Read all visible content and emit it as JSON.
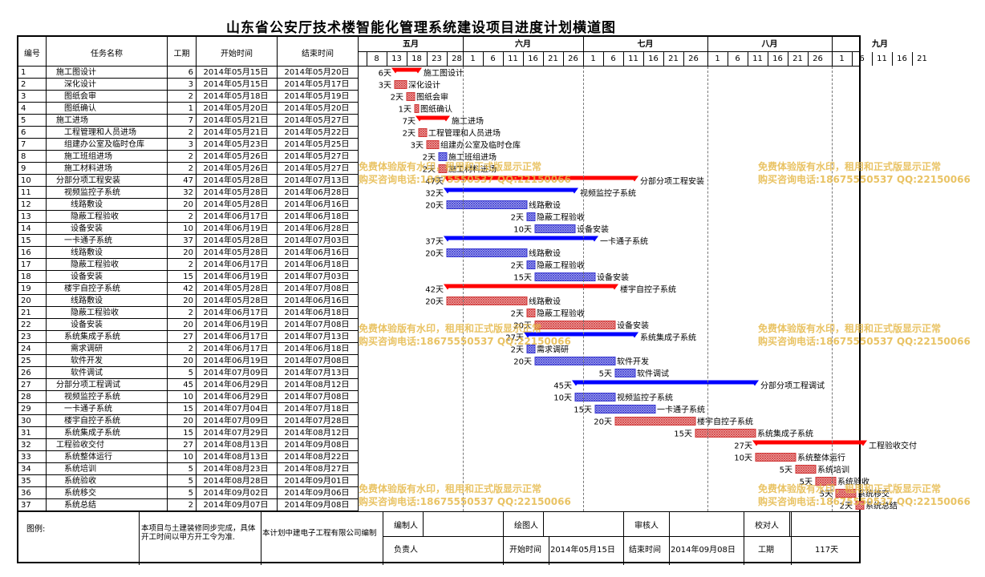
{
  "title": "山东省公安厅技术楼智能化管理系统建设项目进度计划横道图",
  "headers": {
    "no": "编号",
    "name": "任务名称",
    "dur": "工期",
    "start": "开始时间",
    "end": "结束时间"
  },
  "months": [
    {
      "label": "五月",
      "days": [
        "8",
        "13",
        "18",
        "23",
        "28"
      ]
    },
    {
      "label": "六月",
      "days": [
        "1",
        "6",
        "11",
        "16",
        "21",
        "26"
      ]
    },
    {
      "label": "七月",
      "days": [
        "1",
        "6",
        "11",
        "16",
        "21",
        "26"
      ]
    },
    {
      "label": "八月",
      "days": [
        "1",
        "6",
        "11",
        "16",
        "21",
        "26"
      ]
    },
    {
      "label": "九月",
      "days": [
        "1",
        "6",
        "11",
        "16",
        "21"
      ]
    }
  ],
  "chart_data": {
    "type": "gantt",
    "x_range": [
      "2014-05-06",
      "2014-09-25"
    ],
    "colors": {
      "summary_red": "#ff0000",
      "summary_blue": "#0000ff",
      "task_red": "#d23a3a",
      "task_blue": "#3a3ad2",
      "watermark": "#e6b94a"
    },
    "tasks": [
      {
        "no": "1",
        "name": "施工图设计",
        "dur": 6,
        "start": "2014年05月15日",
        "end": "2014年05月20日",
        "s": "2014-05-15",
        "e": "2014-05-20",
        "type": "summary",
        "color": "red",
        "label": "施工图设计",
        "level": 0
      },
      {
        "no": "2",
        "name": "深化设计",
        "dur": 3,
        "start": "2014年05月15日",
        "end": "2014年05月17日",
        "s": "2014-05-15",
        "e": "2014-05-17",
        "type": "task",
        "color": "red",
        "label": "深化设计",
        "level": 1
      },
      {
        "no": "3",
        "name": "图纸会审",
        "dur": 2,
        "start": "2014年05月18日",
        "end": "2014年05月19日",
        "s": "2014-05-18",
        "e": "2014-05-19",
        "type": "task",
        "color": "red",
        "label": "图纸会审",
        "level": 1
      },
      {
        "no": "4",
        "name": "图纸确认",
        "dur": 1,
        "start": "2014年05月20日",
        "end": "2014年05月20日",
        "s": "2014-05-20",
        "e": "2014-05-20",
        "type": "task",
        "color": "red",
        "label": "图纸确认",
        "level": 1
      },
      {
        "no": "5",
        "name": "施工进场",
        "dur": 7,
        "start": "2014年05月21日",
        "end": "2014年05月27日",
        "s": "2014-05-21",
        "e": "2014-05-27",
        "type": "summary",
        "color": "red",
        "label": "施工进场",
        "level": 0
      },
      {
        "no": "6",
        "name": "工程管理和人员进场",
        "dur": 2,
        "start": "2014年05月21日",
        "end": "2014年05月22日",
        "s": "2014-05-21",
        "e": "2014-05-22",
        "type": "task",
        "color": "red",
        "label": "工程管理和人员进场",
        "level": 1
      },
      {
        "no": "7",
        "name": "组建办公室及临时仓库",
        "dur": 3,
        "start": "2014年05月23日",
        "end": "2014年05月25日",
        "s": "2014-05-23",
        "e": "2014-05-25",
        "type": "task",
        "color": "red",
        "label": "组建办公室及临时仓库",
        "level": 1
      },
      {
        "no": "8",
        "name": "施工班组进场",
        "dur": 2,
        "start": "2014年05月26日",
        "end": "2014年05月27日",
        "s": "2014-05-26",
        "e": "2014-05-27",
        "type": "task",
        "color": "blue",
        "label": "施工班组进场",
        "level": 1
      },
      {
        "no": "9",
        "name": "施工材料进场",
        "dur": 2,
        "start": "2014年05月26日",
        "end": "2014年05月27日",
        "s": "2014-05-26",
        "e": "2014-05-27",
        "type": "task",
        "color": "red",
        "label": "施工材料进场",
        "level": 1
      },
      {
        "no": "10",
        "name": "分部分项工程安装",
        "dur": 47,
        "start": "2014年05月28日",
        "end": "2014年07月13日",
        "s": "2014-05-28",
        "e": "2014-07-13",
        "type": "summary",
        "color": "red",
        "label": "分部分项工程安装",
        "level": 0
      },
      {
        "no": "11",
        "name": "视频监控子系统",
        "dur": 32,
        "start": "2014年05月28日",
        "end": "2014年06月28日",
        "s": "2014-05-28",
        "e": "2014-06-28",
        "type": "summary",
        "color": "blue",
        "label": "视频监控子系统",
        "level": 1
      },
      {
        "no": "12",
        "name": "线路敷设",
        "dur": 20,
        "start": "2014年05月28日",
        "end": "2014年06月16日",
        "s": "2014-05-28",
        "e": "2014-06-16",
        "type": "task",
        "color": "blue",
        "label": "线路敷设",
        "level": 2
      },
      {
        "no": "13",
        "name": "隐蔽工程验收",
        "dur": 2,
        "start": "2014年06月17日",
        "end": "2014年06月18日",
        "s": "2014-06-17",
        "e": "2014-06-18",
        "type": "task",
        "color": "blue",
        "label": "隐蔽工程验收",
        "level": 2
      },
      {
        "no": "14",
        "name": "设备安装",
        "dur": 10,
        "start": "2014年06月19日",
        "end": "2014年06月28日",
        "s": "2014-06-19",
        "e": "2014-06-28",
        "type": "task",
        "color": "blue",
        "label": "设备安装",
        "level": 2
      },
      {
        "no": "15",
        "name": "一卡通子系统",
        "dur": 37,
        "start": "2014年05月28日",
        "end": "2014年07月03日",
        "s": "2014-05-28",
        "e": "2014-07-03",
        "type": "summary",
        "color": "blue",
        "label": "一卡通子系统",
        "level": 1
      },
      {
        "no": "16",
        "name": "线路敷设",
        "dur": 20,
        "start": "2014年05月28日",
        "end": "2014年06月16日",
        "s": "2014-05-28",
        "e": "2014-06-16",
        "type": "task",
        "color": "blue",
        "label": "线路敷设",
        "level": 2
      },
      {
        "no": "17",
        "name": "隐蔽工程验收",
        "dur": 2,
        "start": "2014年06月17日",
        "end": "2014年06月18日",
        "s": "2014-06-17",
        "e": "2014-06-18",
        "type": "task",
        "color": "blue",
        "label": "隐蔽工程验收",
        "level": 2
      },
      {
        "no": "18",
        "name": "设备安装",
        "dur": 15,
        "start": "2014年06月19日",
        "end": "2014年07月03日",
        "s": "2014-06-19",
        "e": "2014-07-03",
        "type": "task",
        "color": "blue",
        "label": "设备安装",
        "level": 2
      },
      {
        "no": "19",
        "name": "楼宇自控子系统",
        "dur": 42,
        "start": "2014年05月28日",
        "end": "2014年07月08日",
        "s": "2014-05-28",
        "e": "2014-07-08",
        "type": "summary",
        "color": "red",
        "label": "楼宇自控子系统",
        "level": 1
      },
      {
        "no": "20",
        "name": "线路敷设",
        "dur": 20,
        "start": "2014年05月28日",
        "end": "2014年06月16日",
        "s": "2014-05-28",
        "e": "2014-06-16",
        "type": "task",
        "color": "red",
        "label": "线路敷设",
        "level": 2
      },
      {
        "no": "21",
        "name": "隐蔽工程验收",
        "dur": 2,
        "start": "2014年06月17日",
        "end": "2014年06月18日",
        "s": "2014-06-17",
        "e": "2014-06-18",
        "type": "task",
        "color": "red",
        "label": "隐蔽工程验收",
        "level": 2
      },
      {
        "no": "22",
        "name": "设备安装",
        "dur": 20,
        "start": "2014年06月19日",
        "end": "2014年07月08日",
        "s": "2014-06-19",
        "e": "2014-07-08",
        "type": "task",
        "color": "red",
        "label": "设备安装",
        "level": 2
      },
      {
        "no": "23",
        "name": "系统集成子系统",
        "dur": 27,
        "start": "2014年06月17日",
        "end": "2014年07月13日",
        "s": "2014-06-17",
        "e": "2014-07-13",
        "type": "summary",
        "color": "blue",
        "label": "系统集成子系统",
        "level": 1
      },
      {
        "no": "24",
        "name": "需求调研",
        "dur": 2,
        "start": "2014年06月17日",
        "end": "2014年06月18日",
        "s": "2014-06-17",
        "e": "2014-06-18",
        "type": "task",
        "color": "blue",
        "label": "需求调研",
        "level": 2
      },
      {
        "no": "25",
        "name": "软件开发",
        "dur": 20,
        "start": "2014年06月19日",
        "end": "2014年07月08日",
        "s": "2014-06-19",
        "e": "2014-07-08",
        "type": "task",
        "color": "blue",
        "label": "软件开发",
        "level": 2
      },
      {
        "no": "26",
        "name": "软件调试",
        "dur": 5,
        "start": "2014年07月09日",
        "end": "2014年07月13日",
        "s": "2014-07-09",
        "e": "2014-07-13",
        "type": "task",
        "color": "blue",
        "label": "软件调试",
        "level": 2
      },
      {
        "no": "27",
        "name": "分部分项工程调试",
        "dur": 45,
        "start": "2014年06月29日",
        "end": "2014年08月12日",
        "s": "2014-06-29",
        "e": "2014-08-12",
        "type": "summary",
        "color": "blue",
        "label": "分部分项工程调试",
        "level": 0
      },
      {
        "no": "28",
        "name": "视频监控子系统",
        "dur": 10,
        "start": "2014年06月29日",
        "end": "2014年07月08日",
        "s": "2014-06-29",
        "e": "2014-07-08",
        "type": "task",
        "color": "blue",
        "label": "视频监控子系统",
        "level": 1
      },
      {
        "no": "29",
        "name": "一卡通子系统",
        "dur": 15,
        "start": "2014年07月04日",
        "end": "2014年07月18日",
        "s": "2014-07-04",
        "e": "2014-07-18",
        "type": "task",
        "color": "blue",
        "label": "一卡通子系统",
        "level": 1
      },
      {
        "no": "30",
        "name": "楼宇自控子系统",
        "dur": 20,
        "start": "2014年07月09日",
        "end": "2014年07月28日",
        "s": "2014-07-09",
        "e": "2014-07-28",
        "type": "task",
        "color": "red",
        "label": "楼宇自控子系统",
        "level": 1
      },
      {
        "no": "31",
        "name": "系统集成子系统",
        "dur": 15,
        "start": "2014年07月29日",
        "end": "2014年08月12日",
        "s": "2014-07-29",
        "e": "2014-08-12",
        "type": "task",
        "color": "red",
        "label": "系统集成子系统",
        "level": 1
      },
      {
        "no": "32",
        "name": "工程验收交付",
        "dur": 27,
        "start": "2014年08月13日",
        "end": "2014年09月08日",
        "s": "2014-08-13",
        "e": "2014-09-08",
        "type": "summary",
        "color": "red",
        "label": "工程验收交付",
        "level": 0
      },
      {
        "no": "33",
        "name": "系统整体运行",
        "dur": 10,
        "start": "2014年08月13日",
        "end": "2014年08月22日",
        "s": "2014-08-13",
        "e": "2014-08-22",
        "type": "task",
        "color": "red",
        "label": "系统整体运行",
        "level": 1
      },
      {
        "no": "34",
        "name": "系统培训",
        "dur": 5,
        "start": "2014年08月23日",
        "end": "2014年08月27日",
        "s": "2014-08-23",
        "e": "2014-08-27",
        "type": "task",
        "color": "red",
        "label": "系统培训",
        "level": 1
      },
      {
        "no": "35",
        "name": "系统验收",
        "dur": 5,
        "start": "2014年08月28日",
        "end": "2014年09月01日",
        "s": "2014-08-28",
        "e": "2014-09-01",
        "type": "task",
        "color": "red",
        "label": "系统验收",
        "level": 1
      },
      {
        "no": "36",
        "name": "系统移交",
        "dur": 5,
        "start": "2014年09月02日",
        "end": "2014年09月06日",
        "s": "2014-09-02",
        "e": "2014-09-06",
        "type": "task",
        "color": "red",
        "label": "系统移交",
        "level": 1
      },
      {
        "no": "37",
        "name": "系统总结",
        "dur": 2,
        "start": "2014年09月07日",
        "end": "2014年09月08日",
        "s": "2014-09-07",
        "e": "2014-09-08",
        "type": "task",
        "color": "red",
        "label": "系统总结",
        "level": 1
      }
    ]
  },
  "day_suffix": "天",
  "footer": {
    "legend_label": "图例:",
    "note": "本项目与土建装修同步完成，具体开工时间以甲方开工令为准.",
    "company": "本计划中建电子工程有限公司编制",
    "compiler_label": "编制人",
    "drafter_label": "绘图人",
    "reviewer_label": "审核人",
    "checker_label": "校对人",
    "owner_label": "负责人",
    "start_label": "开始时间",
    "start_value": "2014年05月15日",
    "end_label": "结束时间",
    "end_value": "2014年09月08日",
    "dur_label": "工期",
    "dur_value": "117天"
  },
  "watermark": {
    "line1": "免费体验版有水印，租用和正式版显示正常",
    "line2": "购买咨询电话:18675550537 QQ:22150066"
  }
}
